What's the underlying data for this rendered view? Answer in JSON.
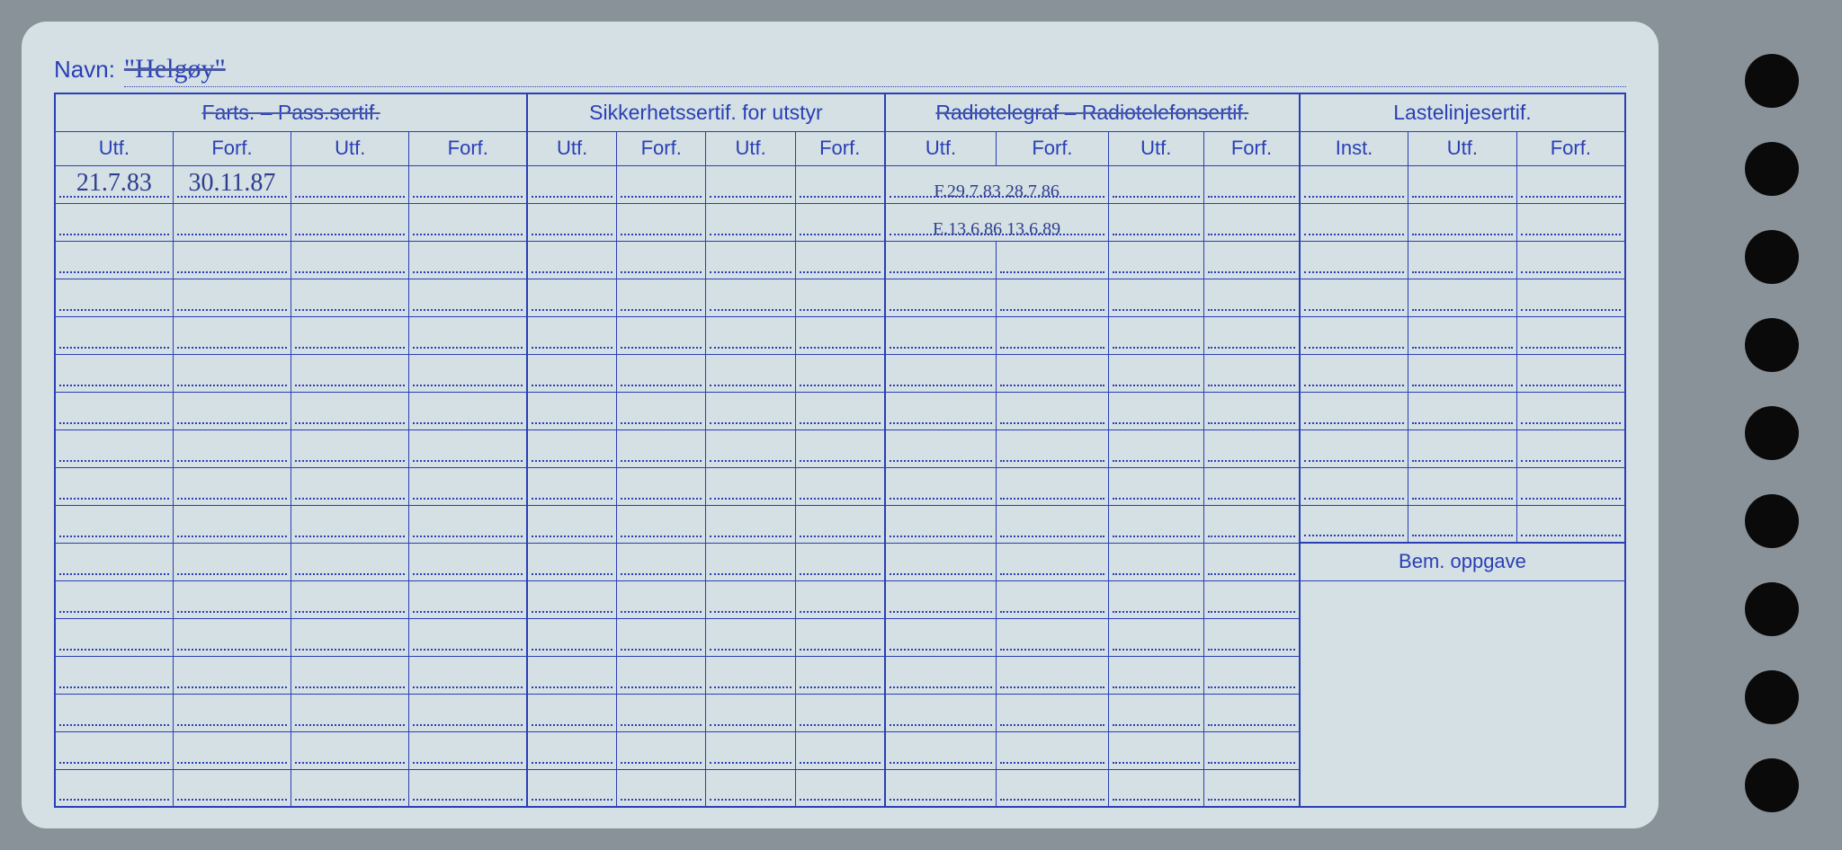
{
  "navn_label": "Navn:",
  "navn_value": "\"Helgøy\"",
  "sections": {
    "farts": "Farts. – Pass.sertif.",
    "sikkerhet": "Sikkerhetssertif. for utstyr",
    "radio": "Radiotelegraf – Radiotelefonsertif.",
    "laste": "Lastelinjesertif."
  },
  "subheaders": {
    "utf": "Utf.",
    "forf": "Forf.",
    "inst": "Inst."
  },
  "bem_label": "Bem. oppgave",
  "entries": {
    "r0c0": "21.7.83",
    "r0c1": "30.11.87",
    "r0c8": "F.29.7.83 28.7.86",
    "r1c8": "E.13.6.86 13.6.89"
  },
  "colors": {
    "card_bg": "#d4e0e4",
    "line": "#2a3fb5",
    "ink": "#2d3e8f",
    "page_bg": "#8a9299"
  },
  "layout": {
    "body_row_count": 17,
    "columns": 15,
    "group_borders": [
      0,
      4,
      8,
      12,
      15
    ],
    "bem_start_row": 10
  }
}
